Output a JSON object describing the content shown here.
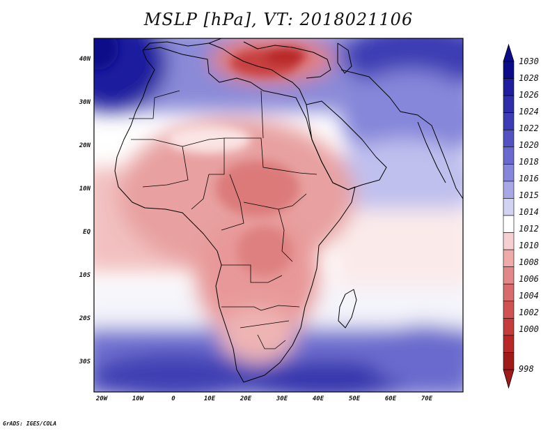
{
  "title": "MSLP [hPa], VT: 2018021106",
  "credit": "GrADS: IGES/COLA",
  "lat_labels": [
    "40N",
    "30N",
    "20N",
    "10N",
    "EQ",
    "10S",
    "20S",
    "30S"
  ],
  "lon_labels": [
    "20W",
    "10W",
    "0",
    "10E",
    "20E",
    "30E",
    "40E",
    "50E",
    "60E",
    "70E"
  ],
  "colorbar": {
    "levels": [
      "1030",
      "1028",
      "1026",
      "1024",
      "1022",
      "1020",
      "1018",
      "1016",
      "1015",
      "1014",
      "1012",
      "1010",
      "1008",
      "1006",
      "1004",
      "1002",
      "1000",
      "998"
    ],
    "colors": [
      "#0c0c8a",
      "#1e1e9e",
      "#2e2eaa",
      "#3c3cb4",
      "#5252c2",
      "#6a6ace",
      "#8686da",
      "#a8a8e6",
      "#d2d2f2",
      "#ffffff",
      "#f6d0d0",
      "#efaaaa",
      "#e28888",
      "#d86c6c",
      "#d05252",
      "#c43c3c",
      "#b82828",
      "#a01a1a"
    ]
  },
  "colors": {
    "ocean_high": "#5a5ac8",
    "land_low": "#e89898",
    "coastline": "#000000"
  }
}
